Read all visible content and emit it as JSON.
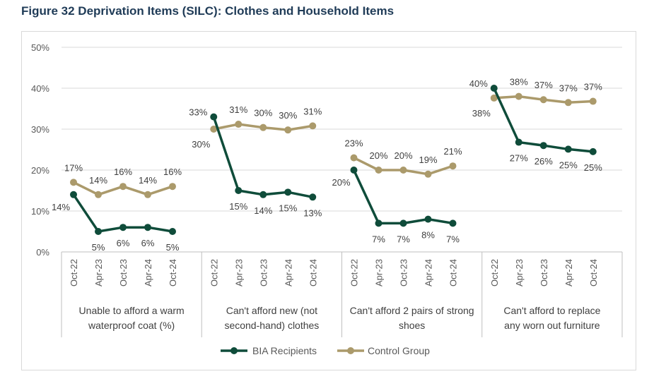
{
  "figure_title": "Figure 32 Deprivation Items (SILC): Clothes and Household Items",
  "colors": {
    "bia": "#0f4c3a",
    "control": "#ab9a6b",
    "grid": "#d9d9d9",
    "axis_text": "#595959",
    "label_text": "#404040"
  },
  "chart_data": {
    "type": "line",
    "ylim": [
      0,
      50
    ],
    "yticks": [
      0,
      10,
      20,
      30,
      40,
      50
    ],
    "ytick_labels": [
      "0%",
      "10%",
      "20%",
      "30%",
      "40%",
      "50%"
    ],
    "x_period_labels": [
      "Oct-22",
      "Apr-23",
      "Oct-23",
      "Apr-24",
      "Oct-24"
    ],
    "grid": true,
    "legend_position": "bottom",
    "series_names": [
      "BIA Recipients",
      "Control Group"
    ],
    "groups": [
      {
        "label": "Unable to afford a warm waterproof coat (%)",
        "label_lines": [
          "Unable to afford a warm",
          "waterproof coat (%)"
        ],
        "bia": [
          14,
          5,
          6,
          6,
          5
        ],
        "control": [
          17,
          14,
          16,
          14,
          16
        ],
        "bia_labels": [
          "14%",
          "5%",
          "6%",
          "6%",
          "5%"
        ],
        "control_labels": [
          "17%",
          "14%",
          "16%",
          "14%",
          "16%"
        ]
      },
      {
        "label": "Can't afford new (not second-hand) clothes",
        "label_lines": [
          "Can't afford new (not",
          "second-hand) clothes"
        ],
        "bia": [
          33,
          15,
          14,
          14.6,
          13.4
        ],
        "control": [
          30,
          31.2,
          30.4,
          29.8,
          30.8
        ],
        "bia_labels": [
          "33%",
          "15%",
          "14%",
          "15%",
          "13%"
        ],
        "control_labels": [
          "30%",
          "31%",
          "30%",
          "30%",
          "31%"
        ]
      },
      {
        "label": "Can't afford 2 pairs of strong shoes",
        "label_lines": [
          "Can't afford 2 pairs of strong",
          "shoes"
        ],
        "bia": [
          20,
          7,
          7,
          8,
          7
        ],
        "control": [
          23,
          20,
          20,
          19,
          21
        ],
        "bia_labels": [
          "20%",
          "7%",
          "7%",
          "8%",
          "7%"
        ],
        "control_labels": [
          "23%",
          "20%",
          "20%",
          "19%",
          "21%"
        ]
      },
      {
        "label": "Can't afford to replace any worn out furniture",
        "label_lines": [
          "Can't afford to replace",
          "any worn out furniture"
        ],
        "bia": [
          40,
          26.8,
          26,
          25.1,
          24.5
        ],
        "control": [
          37.6,
          38,
          37.2,
          36.5,
          36.8
        ],
        "bia_labels": [
          "40%",
          "27%",
          "26%",
          "25%",
          "25%"
        ],
        "control_labels": [
          "38%",
          "38%",
          "37%",
          "37%",
          "37%"
        ]
      }
    ]
  }
}
